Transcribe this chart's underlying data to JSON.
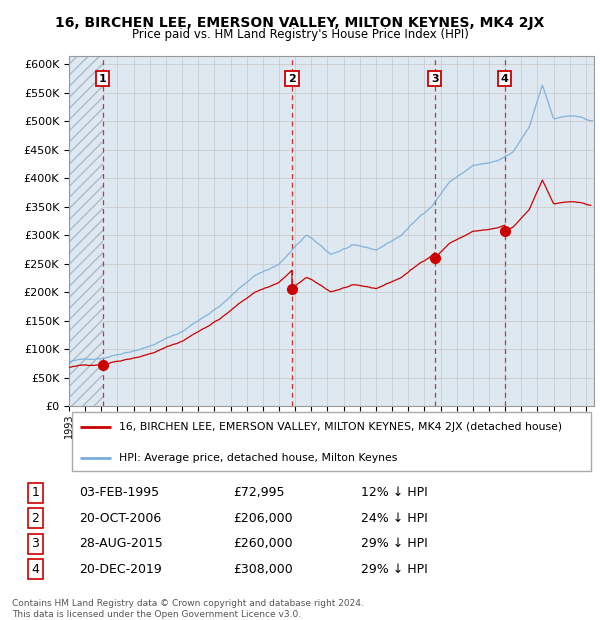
{
  "title": "16, BIRCHEN LEE, EMERSON VALLEY, MILTON KEYNES, MK4 2JX",
  "subtitle": "Price paid vs. HM Land Registry's House Price Index (HPI)",
  "legend_property": "16, BIRCHEN LEE, EMERSON VALLEY, MILTON KEYNES, MK4 2JX (detached house)",
  "legend_hpi": "HPI: Average price, detached house, Milton Keynes",
  "footer": "Contains HM Land Registry data © Crown copyright and database right 2024.\nThis data is licensed under the Open Government Licence v3.0.",
  "transactions": [
    {
      "num": 1,
      "date_label": "03-FEB-1995",
      "date_x": 1995.09,
      "price": 72995,
      "pct": "12% ↓ HPI"
    },
    {
      "num": 2,
      "date_label": "20-OCT-2006",
      "date_x": 2006.8,
      "price": 206000,
      "pct": "24% ↓ HPI"
    },
    {
      "num": 3,
      "date_label": "28-AUG-2015",
      "date_x": 2015.65,
      "price": 260000,
      "pct": "29% ↓ HPI"
    },
    {
      "num": 4,
      "date_label": "20-DEC-2019",
      "date_x": 2019.97,
      "price": 308000,
      "pct": "29% ↓ HPI"
    }
  ],
  "prices_display": [
    "£72,995",
    "£206,000",
    "£260,000",
    "£308,000"
  ],
  "property_color": "#cc0000",
  "hpi_color": "#7aacdc",
  "dashed_line_color": "#cc3333",
  "ylim": [
    0,
    615000
  ],
  "yticks": [
    0,
    50000,
    100000,
    150000,
    200000,
    250000,
    300000,
    350000,
    400000,
    450000,
    500000,
    550000,
    600000
  ],
  "ytick_labels": [
    "£0",
    "£50K",
    "£100K",
    "£150K",
    "£200K",
    "£250K",
    "£300K",
    "£350K",
    "£400K",
    "£450K",
    "£500K",
    "£550K",
    "£600K"
  ],
  "xlim": [
    1993.0,
    2025.5
  ],
  "grid_color": "#cccccc",
  "bg_color": "#dde8f0",
  "hatch_area_end": 1995.09
}
